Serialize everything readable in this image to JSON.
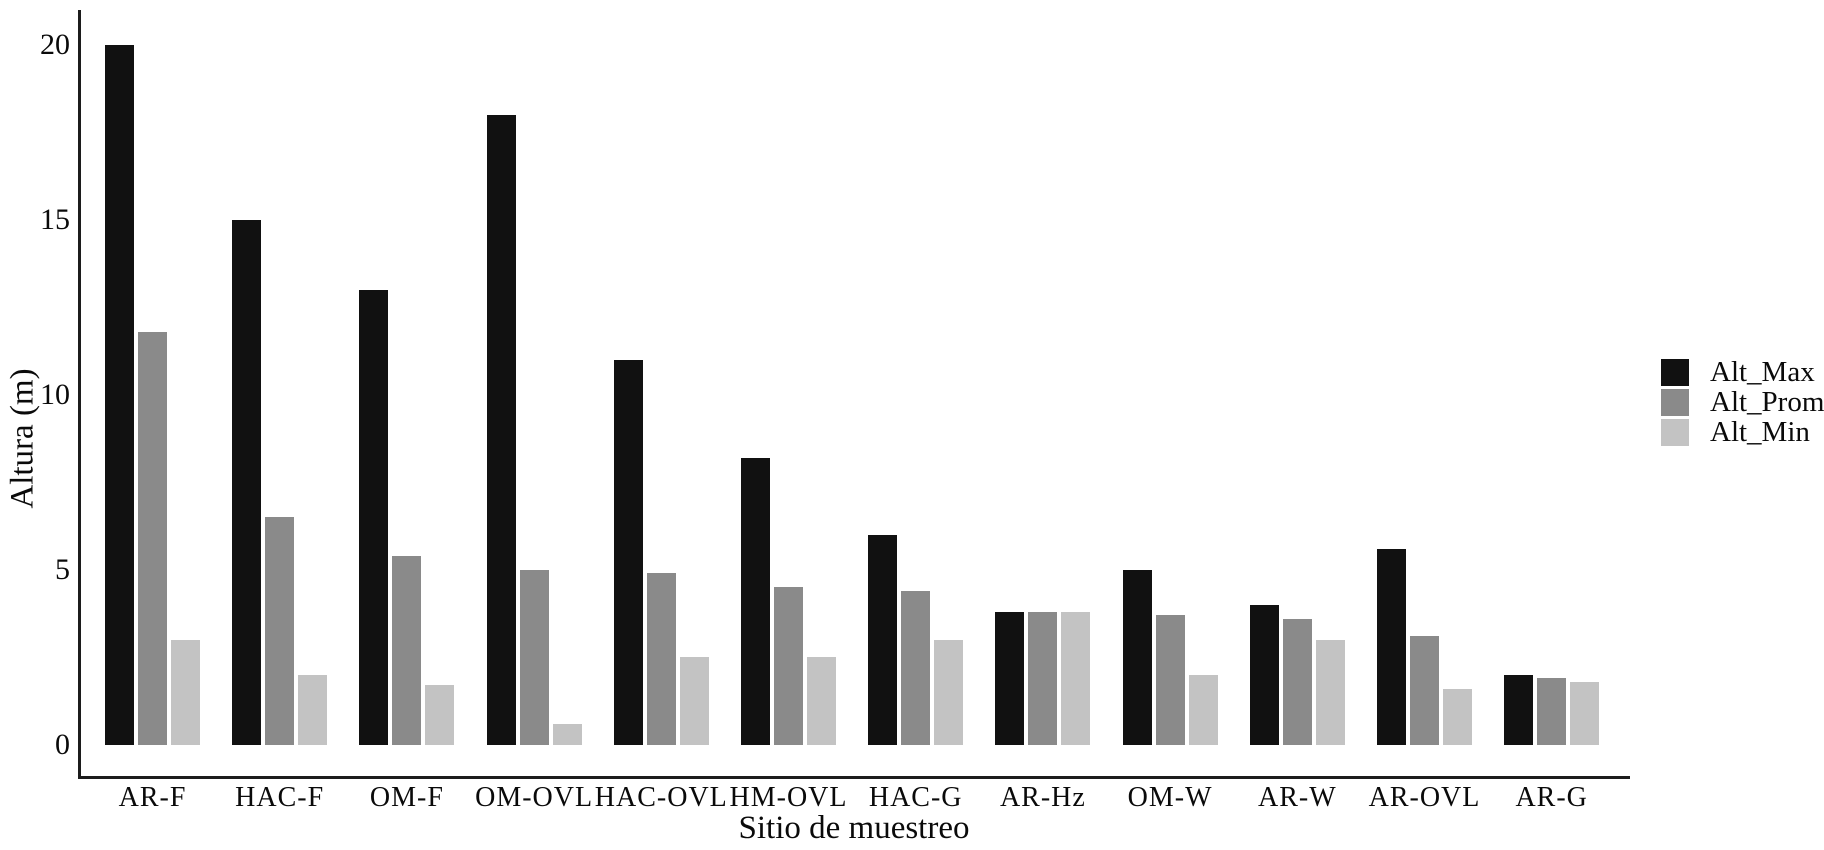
{
  "chart_data": {
    "type": "bar",
    "title": "",
    "xlabel": "Sitio de muestreo",
    "ylabel": "Altura (m)",
    "categories": [
      "AR-F",
      "HAC-F",
      "OM-F",
      "OM-OVL",
      "HAC-OVL",
      "HM-OVL",
      "HAC-G",
      "AR-Hz",
      "OM-W",
      "AR-W",
      "AR-OVL",
      "AR-G"
    ],
    "series": [
      {
        "name": "Alt_Max",
        "color": "#111111",
        "values": [
          20,
          15,
          13,
          18,
          11,
          8.2,
          6,
          3.8,
          5,
          4,
          5.6,
          2
        ]
      },
      {
        "name": "Alt_Prom",
        "color": "#8a8a8a",
        "values": [
          11.8,
          6.5,
          5.4,
          5,
          4.9,
          4.5,
          4.4,
          3.8,
          3.7,
          3.6,
          3.1,
          1.9
        ]
      },
      {
        "name": "Alt_Min",
        "color": "#c3c3c3",
        "values": [
          3,
          2,
          1.7,
          0.6,
          2.5,
          2.5,
          3,
          3.8,
          2,
          3,
          1.6,
          1.8
        ]
      }
    ],
    "yticks": [
      0,
      5,
      10,
      15,
      20
    ],
    "ylim": [
      0,
      20.5
    ],
    "grid": false,
    "legend_position": "right-middle"
  }
}
